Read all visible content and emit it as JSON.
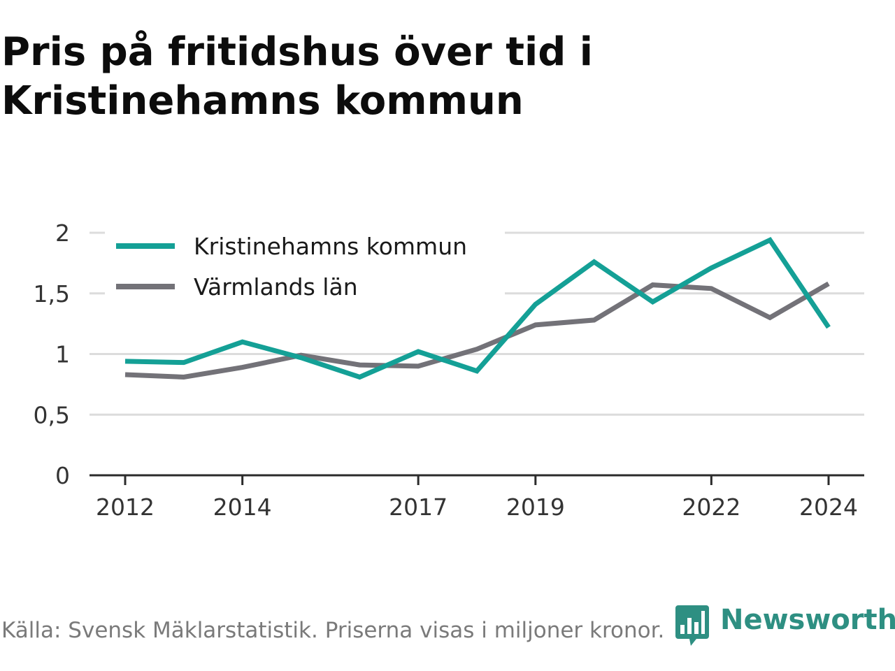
{
  "header": {
    "title_line1": "Pris på fritidshus över tid i",
    "title_line2": "Kristinehamns kommun"
  },
  "footer": {
    "source": "Källa: Svensk Mäklarstatistik. Priserna visas i miljoner kronor.",
    "brand": "Newsworthy",
    "brand_icon": "bar-chart-speech-bubble-icon",
    "brand_color": "#2e8f82"
  },
  "chart_data": {
    "type": "line",
    "x": [
      2012,
      2013,
      2014,
      2015,
      2016,
      2017,
      2018,
      2019,
      2020,
      2021,
      2022,
      2023,
      2024
    ],
    "x_tick_labels": [
      "2012",
      "2014",
      "2017",
      "2019",
      "2022",
      "2024"
    ],
    "x_tick_values": [
      2012,
      2014,
      2017,
      2019,
      2022,
      2024
    ],
    "y_tick_labels": [
      "0",
      "0,5",
      "1",
      "1,5",
      "2"
    ],
    "y_tick_values": [
      0,
      0.5,
      1,
      1.5,
      2
    ],
    "ylim": [
      0,
      2
    ],
    "grid": true,
    "legend_position": "top-left",
    "series": [
      {
        "name": "Kristinehamns kommun",
        "color": "#14a096",
        "values": [
          0.94,
          0.93,
          1.1,
          0.97,
          0.81,
          1.02,
          0.86,
          1.41,
          1.76,
          1.43,
          1.71,
          1.94,
          1.22
        ]
      },
      {
        "name": "Värmlands län",
        "color": "#737278",
        "values": [
          0.83,
          0.81,
          0.89,
          0.99,
          0.91,
          0.9,
          1.04,
          1.24,
          1.28,
          1.57,
          1.54,
          1.3,
          1.58
        ]
      }
    ]
  }
}
